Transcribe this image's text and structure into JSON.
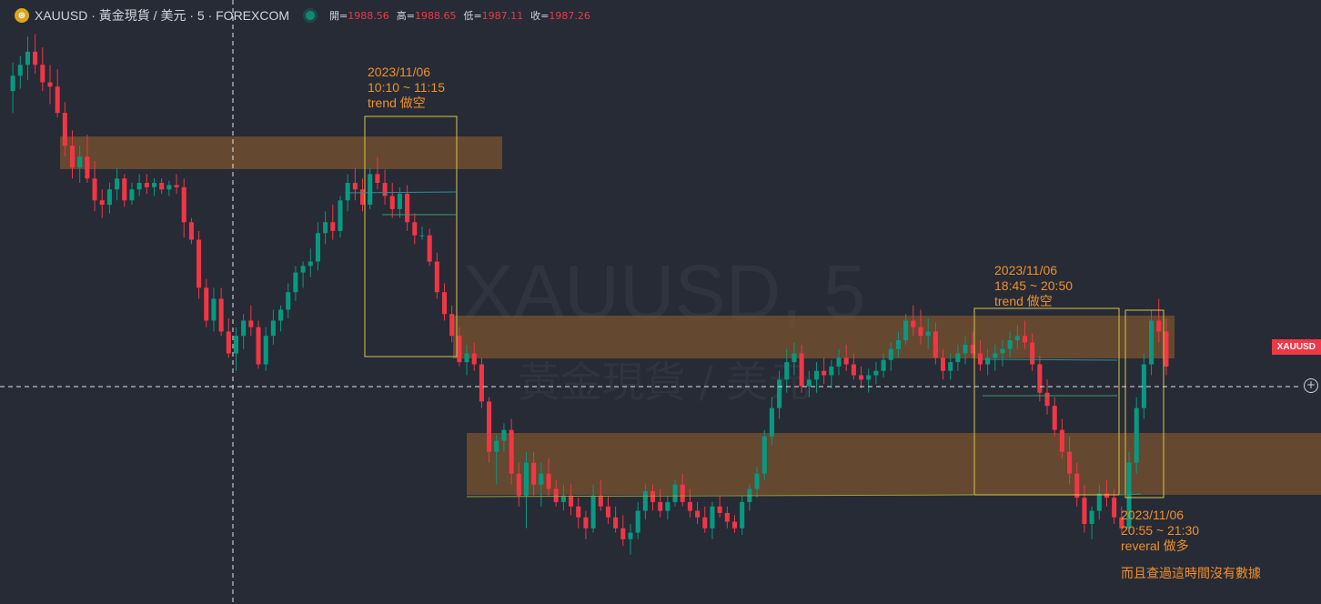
{
  "header": {
    "symbol": "XAUUSD · 黃金現貨 / 美元 · 5 · FOREXCOM",
    "open_label": "開=",
    "open": "1988.56",
    "high_label": "高=",
    "high": "1988.65",
    "low_label": "低=",
    "low": "1987.11",
    "close_label": "收=",
    "close": "1987.26"
  },
  "watermark": {
    "line1": "XAUUSD, 5",
    "line2": "黃金現貨 / 美元"
  },
  "price_tag": "XAUUSD",
  "annotations": [
    {
      "date": "2023/11/06",
      "time": "10:10 ~ 11:15",
      "note": "trend 做空"
    },
    {
      "date": "2023/11/06",
      "time": "18:45 ~ 20:50",
      "note": "trend 做空"
    },
    {
      "date": "2023/11/06",
      "time": "20:55 ~ 21:30",
      "note": "reveral 做多"
    }
  ],
  "footnote": "而且查過這時間沒有數據",
  "colors": {
    "up": "#089981",
    "down": "#f23645",
    "zone": "#8a5a2b",
    "box": "#d6c64a",
    "annotation": "#f0902a",
    "background": "#262b36"
  },
  "chart_data": {
    "type": "candlestick",
    "price_range": [
      1987.0,
      1989.2
    ],
    "ohlc": [
      [
        1989.0,
        1989.13,
        1988.9,
        1989.07
      ],
      [
        1989.07,
        1989.16,
        1989.01,
        1989.12
      ],
      [
        1989.12,
        1989.25,
        1989.05,
        1989.18
      ],
      [
        1989.18,
        1989.26,
        1989.08,
        1989.12
      ],
      [
        1989.12,
        1989.2,
        1989.0,
        1989.04
      ],
      [
        1989.04,
        1989.12,
        1988.94,
        1989.02
      ],
      [
        1989.02,
        1989.1,
        1988.88,
        1988.9
      ],
      [
        1988.9,
        1988.95,
        1988.7,
        1988.75
      ],
      [
        1988.75,
        1988.82,
        1988.6,
        1988.65
      ],
      [
        1988.65,
        1988.75,
        1988.58,
        1988.7
      ],
      [
        1988.7,
        1988.8,
        1988.58,
        1988.6
      ],
      [
        1988.6,
        1988.68,
        1988.45,
        1988.5
      ],
      [
        1988.5,
        1988.55,
        1988.42,
        1988.48
      ],
      [
        1988.48,
        1988.58,
        1988.44,
        1988.55
      ],
      [
        1988.55,
        1988.65,
        1988.5,
        1988.6
      ],
      [
        1988.6,
        1988.62,
        1988.47,
        1988.5
      ],
      [
        1988.5,
        1988.58,
        1988.48,
        1988.55
      ],
      [
        1988.55,
        1988.62,
        1988.52,
        1988.58
      ],
      [
        1988.58,
        1988.62,
        1988.53,
        1988.56
      ],
      [
        1988.56,
        1988.6,
        1988.52,
        1988.58
      ],
      [
        1988.58,
        1988.6,
        1988.53,
        1988.55
      ],
      [
        1988.55,
        1988.59,
        1988.52,
        1988.57
      ],
      [
        1988.57,
        1988.62,
        1988.53,
        1988.56
      ],
      [
        1988.56,
        1988.6,
        1988.33,
        1988.4
      ],
      [
        1988.4,
        1988.42,
        1988.3,
        1988.32
      ],
      [
        1988.32,
        1988.36,
        1988.05,
        1988.1
      ],
      [
        1988.1,
        1988.14,
        1987.92,
        1987.95
      ],
      [
        1987.95,
        1988.1,
        1987.9,
        1988.05
      ],
      [
        1988.05,
        1988.1,
        1987.88,
        1987.9
      ],
      [
        1987.9,
        1987.96,
        1987.78,
        1987.8
      ],
      [
        1987.8,
        1987.92,
        1987.72,
        1987.88
      ],
      [
        1987.88,
        1987.98,
        1987.82,
        1987.95
      ],
      [
        1987.95,
        1988.02,
        1987.88,
        1987.92
      ],
      [
        1987.92,
        1987.95,
        1987.73,
        1987.75
      ],
      [
        1987.75,
        1987.92,
        1987.72,
        1987.88
      ],
      [
        1987.88,
        1988.0,
        1987.84,
        1987.95
      ],
      [
        1987.95,
        1988.02,
        1987.9,
        1988.0
      ],
      [
        1988.0,
        1988.12,
        1987.96,
        1988.08
      ],
      [
        1988.08,
        1988.2,
        1988.04,
        1988.17
      ],
      [
        1988.17,
        1988.22,
        1988.1,
        1988.2
      ],
      [
        1988.2,
        1988.28,
        1988.15,
        1988.22
      ],
      [
        1988.22,
        1988.4,
        1988.18,
        1988.35
      ],
      [
        1988.35,
        1988.45,
        1988.3,
        1988.4
      ],
      [
        1988.4,
        1988.48,
        1988.32,
        1988.36
      ],
      [
        1988.36,
        1988.52,
        1988.33,
        1988.5
      ],
      [
        1988.5,
        1988.62,
        1988.45,
        1988.58
      ],
      [
        1988.58,
        1988.65,
        1988.5,
        1988.55
      ],
      [
        1988.55,
        1988.6,
        1988.45,
        1988.48
      ],
      [
        1988.48,
        1988.65,
        1988.46,
        1988.62
      ],
      [
        1988.62,
        1988.7,
        1988.55,
        1988.58
      ],
      [
        1988.58,
        1988.64,
        1988.48,
        1988.52
      ],
      [
        1988.52,
        1988.58,
        1988.42,
        1988.46
      ],
      [
        1988.46,
        1988.56,
        1988.42,
        1988.53
      ],
      [
        1988.53,
        1988.57,
        1988.36,
        1988.4
      ],
      [
        1988.4,
        1988.44,
        1988.3,
        1988.34
      ],
      [
        1988.34,
        1988.38,
        1988.32,
        1988.34
      ],
      [
        1988.34,
        1988.37,
        1988.2,
        1988.22
      ],
      [
        1988.22,
        1988.26,
        1988.05,
        1988.08
      ],
      [
        1988.08,
        1988.12,
        1987.95,
        1987.98
      ],
      [
        1987.98,
        1988.02,
        1987.85,
        1987.88
      ],
      [
        1987.88,
        1987.92,
        1987.74,
        1987.76
      ],
      [
        1987.76,
        1987.84,
        1987.7,
        1987.8
      ],
      [
        1987.8,
        1987.85,
        1987.72,
        1987.75
      ],
      [
        1987.75,
        1987.78,
        1987.55,
        1987.58
      ],
      [
        1987.58,
        1987.6,
        1987.3,
        1987.35
      ],
      [
        1987.35,
        1987.43,
        1987.2,
        1987.4
      ],
      [
        1987.4,
        1987.48,
        1987.35,
        1987.45
      ],
      [
        1987.45,
        1987.5,
        1987.2,
        1987.25
      ],
      [
        1987.25,
        1987.3,
        1987.1,
        1987.15
      ],
      [
        1987.15,
        1987.35,
        1987.0,
        1987.3
      ],
      [
        1987.3,
        1987.35,
        1987.15,
        1987.2
      ],
      [
        1987.2,
        1987.3,
        1987.1,
        1987.25
      ],
      [
        1987.25,
        1987.32,
        1987.15,
        1987.18
      ],
      [
        1987.18,
        1987.22,
        1987.1,
        1987.12
      ],
      [
        1987.12,
        1987.2,
        1987.08,
        1987.15
      ],
      [
        1987.15,
        1987.2,
        1987.06,
        1987.1
      ],
      [
        1987.1,
        1987.14,
        1987.0,
        1987.05
      ],
      [
        1987.05,
        1987.08,
        1986.95,
        1987.0
      ],
      [
        1987.0,
        1987.2,
        1986.98,
        1987.15
      ],
      [
        1987.15,
        1987.22,
        1987.08,
        1987.1
      ],
      [
        1987.1,
        1987.15,
        1987.02,
        1987.05
      ],
      [
        1987.05,
        1987.1,
        1986.98,
        1987.0
      ],
      [
        1987.0,
        1987.06,
        1986.92,
        1986.95
      ],
      [
        1986.95,
        1987.02,
        1986.88,
        1986.98
      ],
      [
        1986.98,
        1987.12,
        1986.95,
        1987.08
      ],
      [
        1987.08,
        1987.2,
        1987.04,
        1987.17
      ],
      [
        1987.17,
        1987.2,
        1987.08,
        1987.12
      ],
      [
        1987.12,
        1987.18,
        1987.05,
        1987.08
      ],
      [
        1987.08,
        1987.15,
        1987.04,
        1987.12
      ],
      [
        1987.12,
        1987.22,
        1987.1,
        1987.2
      ],
      [
        1987.2,
        1987.25,
        1987.1,
        1987.12
      ],
      [
        1987.12,
        1987.18,
        1987.05,
        1987.08
      ],
      [
        1987.08,
        1987.12,
        1987.02,
        1987.05
      ],
      [
        1987.05,
        1987.1,
        1986.98,
        1987.0
      ],
      [
        1987.0,
        1987.12,
        1986.95,
        1987.1
      ],
      [
        1987.1,
        1987.15,
        1987.05,
        1987.07
      ],
      [
        1987.07,
        1987.1,
        1987.0,
        1987.03
      ],
      [
        1987.03,
        1987.06,
        1986.98,
        1987.0
      ],
      [
        1987.0,
        1987.15,
        1986.97,
        1987.12
      ],
      [
        1987.12,
        1987.2,
        1987.08,
        1987.18
      ],
      [
        1987.18,
        1987.28,
        1987.14,
        1987.25
      ],
      [
        1987.25,
        1987.45,
        1987.22,
        1987.42
      ],
      [
        1987.42,
        1987.6,
        1987.38,
        1987.55
      ],
      [
        1987.55,
        1987.72,
        1987.5,
        1987.68
      ],
      [
        1987.68,
        1987.82,
        1987.62,
        1987.76
      ],
      [
        1987.76,
        1987.85,
        1987.7,
        1987.8
      ],
      [
        1987.8,
        1987.84,
        1987.62,
        1987.65
      ],
      [
        1987.65,
        1987.72,
        1987.6,
        1987.68
      ],
      [
        1987.68,
        1987.76,
        1987.62,
        1987.72
      ],
      [
        1987.72,
        1987.78,
        1987.66,
        1987.7
      ],
      [
        1987.7,
        1987.77,
        1987.64,
        1987.74
      ],
      [
        1987.74,
        1987.82,
        1987.7,
        1987.78
      ],
      [
        1987.78,
        1987.84,
        1987.72,
        1987.75
      ],
      [
        1987.75,
        1987.8,
        1987.68,
        1987.7
      ],
      [
        1987.7,
        1987.74,
        1987.64,
        1987.68
      ],
      [
        1987.68,
        1987.73,
        1987.62,
        1987.7
      ],
      [
        1987.7,
        1987.76,
        1987.66,
        1987.72
      ],
      [
        1987.72,
        1987.8,
        1987.69,
        1987.77
      ],
      [
        1987.77,
        1987.85,
        1987.72,
        1987.82
      ],
      [
        1987.82,
        1987.9,
        1987.78,
        1987.86
      ],
      [
        1987.86,
        1987.98,
        1987.84,
        1987.95
      ],
      [
        1987.95,
        1988.02,
        1987.88,
        1987.92
      ],
      [
        1987.92,
        1988.0,
        1987.84,
        1987.88
      ],
      [
        1987.88,
        1987.96,
        1987.82,
        1987.9
      ],
      [
        1987.9,
        1987.94,
        1987.75,
        1987.78
      ],
      [
        1987.78,
        1987.82,
        1987.68,
        1987.72
      ],
      [
        1987.72,
        1987.8,
        1987.68,
        1987.76
      ],
      [
        1987.76,
        1987.84,
        1987.72,
        1987.8
      ],
      [
        1987.8,
        1987.88,
        1987.75,
        1987.84
      ],
      [
        1987.84,
        1987.9,
        1987.78,
        1987.8
      ],
      [
        1987.8,
        1987.86,
        1987.72,
        1987.75
      ],
      [
        1987.75,
        1987.82,
        1987.7,
        1987.78
      ],
      [
        1987.78,
        1987.84,
        1987.72,
        1987.8
      ],
      [
        1987.8,
        1987.86,
        1987.74,
        1987.82
      ],
      [
        1987.82,
        1987.9,
        1987.78,
        1987.86
      ],
      [
        1987.86,
        1987.93,
        1987.82,
        1987.88
      ],
      [
        1987.88,
        1987.95,
        1987.82,
        1987.85
      ],
      [
        1987.85,
        1987.89,
        1987.72,
        1987.75
      ],
      [
        1987.75,
        1987.79,
        1987.58,
        1987.62
      ],
      [
        1987.62,
        1987.68,
        1987.52,
        1987.56
      ],
      [
        1987.56,
        1987.6,
        1987.42,
        1987.45
      ],
      [
        1987.45,
        1987.5,
        1987.32,
        1987.35
      ],
      [
        1987.35,
        1987.42,
        1987.2,
        1987.25
      ],
      [
        1987.25,
        1987.3,
        1987.1,
        1987.14
      ],
      [
        1987.14,
        1987.2,
        1986.98,
        1987.02
      ],
      [
        1987.02,
        1987.1,
        1986.95,
        1987.08
      ],
      [
        1987.08,
        1987.2,
        1987.04,
        1987.16
      ],
      [
        1987.16,
        1987.22,
        1987.1,
        1987.14
      ],
      [
        1987.14,
        1987.18,
        1987.02,
        1987.05
      ],
      [
        1987.05,
        1987.1,
        1986.98,
        1987.0
      ],
      [
        1987.0,
        1987.35,
        1986.98,
        1987.3
      ],
      [
        1987.3,
        1987.6,
        1987.25,
        1987.55
      ],
      [
        1987.55,
        1987.8,
        1987.5,
        1987.75
      ],
      [
        1987.75,
        1988.0,
        1987.7,
        1987.95
      ],
      [
        1987.95,
        1988.05,
        1987.85,
        1987.9
      ],
      [
        1987.9,
        1987.96,
        1987.7,
        1987.74
      ]
    ]
  }
}
